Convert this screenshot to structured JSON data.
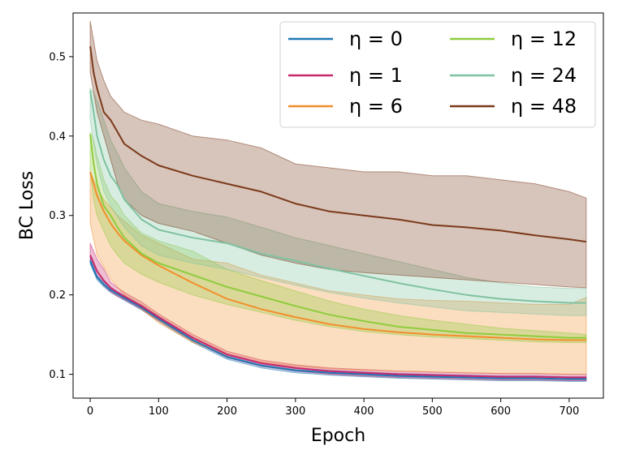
{
  "chart_data": {
    "type": "line",
    "title": "",
    "xlabel": "Epoch",
    "ylabel": "BC Loss",
    "xlim": [
      -25,
      750
    ],
    "ylim": [
      0.07,
      0.555
    ],
    "xticks": [
      0,
      100,
      200,
      300,
      400,
      500,
      600,
      700
    ],
    "yticks": [
      0.1,
      0.2,
      0.3,
      0.4,
      0.5
    ],
    "xtick_labels": [
      "0",
      "100",
      "200",
      "300",
      "400",
      "500",
      "600",
      "700"
    ],
    "ytick_labels": [
      "0.1",
      "0.2",
      "0.3",
      "0.4",
      "0.5"
    ],
    "grid": false,
    "legend_position": "top-right",
    "x": [
      0,
      5,
      10,
      20,
      30,
      40,
      50,
      75,
      100,
      150,
      200,
      250,
      300,
      350,
      400,
      450,
      500,
      550,
      600,
      650,
      700,
      725
    ],
    "series": [
      {
        "name": "η = 0",
        "color": "#1f77b4",
        "values": [
          0.243,
          0.232,
          0.222,
          0.213,
          0.206,
          0.201,
          0.196,
          0.184,
          0.17,
          0.143,
          0.122,
          0.111,
          0.105,
          0.102,
          0.1,
          0.098,
          0.097,
          0.096,
          0.095,
          0.095,
          0.094,
          0.094
        ],
        "lower": [
          0.239,
          0.229,
          0.219,
          0.21,
          0.203,
          0.198,
          0.193,
          0.181,
          0.167,
          0.14,
          0.119,
          0.108,
          0.102,
          0.099,
          0.097,
          0.095,
          0.094,
          0.093,
          0.092,
          0.092,
          0.091,
          0.091
        ],
        "upper": [
          0.247,
          0.236,
          0.225,
          0.216,
          0.209,
          0.204,
          0.199,
          0.187,
          0.173,
          0.146,
          0.125,
          0.114,
          0.108,
          0.105,
          0.103,
          0.101,
          0.1,
          0.099,
          0.098,
          0.098,
          0.097,
          0.097
        ]
      },
      {
        "name": "η = 1",
        "color": "#c7286e",
        "values": [
          0.25,
          0.24,
          0.23,
          0.218,
          0.209,
          0.203,
          0.198,
          0.186,
          0.172,
          0.146,
          0.125,
          0.114,
          0.108,
          0.104,
          0.102,
          0.1,
          0.099,
          0.098,
          0.097,
          0.097,
          0.096,
          0.096
        ],
        "lower": [
          0.242,
          0.232,
          0.222,
          0.212,
          0.204,
          0.198,
          0.194,
          0.182,
          0.168,
          0.142,
          0.121,
          0.11,
          0.104,
          0.1,
          0.098,
          0.096,
          0.095,
          0.094,
          0.093,
          0.093,
          0.092,
          0.092
        ],
        "upper": [
          0.265,
          0.255,
          0.245,
          0.232,
          0.216,
          0.209,
          0.203,
          0.191,
          0.176,
          0.15,
          0.129,
          0.118,
          0.112,
          0.108,
          0.106,
          0.104,
          0.103,
          0.102,
          0.101,
          0.101,
          0.1,
          0.1
        ]
      },
      {
        "name": "η = 6",
        "color": "#f28e2b",
        "values": [
          0.355,
          0.34,
          0.325,
          0.305,
          0.29,
          0.278,
          0.268,
          0.25,
          0.237,
          0.215,
          0.195,
          0.182,
          0.172,
          0.163,
          0.157,
          0.153,
          0.15,
          0.148,
          0.146,
          0.144,
          0.143,
          0.143
        ],
        "lower": [
          0.29,
          0.27,
          0.25,
          0.235,
          0.22,
          0.21,
          0.2,
          0.182,
          0.165,
          0.14,
          0.124,
          0.115,
          0.11,
          0.107,
          0.105,
          0.104,
          0.103,
          0.102,
          0.101,
          0.101,
          0.1,
          0.1
        ],
        "upper": [
          0.355,
          0.345,
          0.335,
          0.32,
          0.31,
          0.3,
          0.293,
          0.275,
          0.265,
          0.245,
          0.24,
          0.225,
          0.215,
          0.205,
          0.2,
          0.195,
          0.193,
          0.192,
          0.19,
          0.188,
          0.188,
          0.197
        ]
      },
      {
        "name": "η = 12",
        "color": "#8fcc3e",
        "values": [
          0.402,
          0.365,
          0.34,
          0.312,
          0.3,
          0.285,
          0.272,
          0.252,
          0.24,
          0.225,
          0.21,
          0.198,
          0.186,
          0.175,
          0.167,
          0.16,
          0.156,
          0.152,
          0.15,
          0.148,
          0.146,
          0.146
        ],
        "lower": [
          0.355,
          0.32,
          0.3,
          0.28,
          0.262,
          0.25,
          0.24,
          0.226,
          0.216,
          0.2,
          0.188,
          0.178,
          0.168,
          0.16,
          0.154,
          0.15,
          0.147,
          0.145,
          0.143,
          0.141,
          0.14,
          0.14
        ],
        "upper": [
          0.405,
          0.395,
          0.375,
          0.345,
          0.325,
          0.315,
          0.3,
          0.278,
          0.268,
          0.255,
          0.232,
          0.218,
          0.205,
          0.192,
          0.182,
          0.174,
          0.168,
          0.163,
          0.158,
          0.155,
          0.152,
          0.15
        ]
      },
      {
        "name": "η = 24",
        "color": "#7fc2a0",
        "values": [
          0.457,
          0.43,
          0.4,
          0.37,
          0.35,
          0.338,
          0.32,
          0.295,
          0.282,
          0.272,
          0.265,
          0.252,
          0.243,
          0.233,
          0.224,
          0.215,
          0.207,
          0.2,
          0.195,
          0.192,
          0.19,
          0.19
        ],
        "lower": [
          0.42,
          0.39,
          0.365,
          0.33,
          0.312,
          0.298,
          0.285,
          0.262,
          0.25,
          0.24,
          0.232,
          0.222,
          0.212,
          0.203,
          0.196,
          0.19,
          0.185,
          0.18,
          0.178,
          0.176,
          0.174,
          0.174
        ],
        "upper": [
          0.46,
          0.455,
          0.445,
          0.42,
          0.395,
          0.378,
          0.36,
          0.33,
          0.315,
          0.305,
          0.298,
          0.285,
          0.272,
          0.262,
          0.252,
          0.242,
          0.232,
          0.222,
          0.215,
          0.21,
          0.208,
          0.208
        ]
      },
      {
        "name": "η = 48",
        "color": "#7b3a1b",
        "values": [
          0.513,
          0.48,
          0.46,
          0.43,
          0.42,
          0.405,
          0.39,
          0.375,
          0.363,
          0.35,
          0.34,
          0.33,
          0.315,
          0.305,
          0.3,
          0.295,
          0.288,
          0.285,
          0.281,
          0.275,
          0.27,
          0.267
        ],
        "lower": [
          0.48,
          0.455,
          0.43,
          0.4,
          0.37,
          0.34,
          0.32,
          0.3,
          0.29,
          0.28,
          0.265,
          0.25,
          0.24,
          0.232,
          0.228,
          0.225,
          0.222,
          0.219,
          0.216,
          0.213,
          0.21,
          0.209
        ],
        "upper": [
          0.545,
          0.52,
          0.495,
          0.47,
          0.45,
          0.44,
          0.43,
          0.42,
          0.415,
          0.4,
          0.395,
          0.385,
          0.365,
          0.36,
          0.355,
          0.355,
          0.35,
          0.35,
          0.345,
          0.34,
          0.33,
          0.322
        ]
      }
    ]
  }
}
